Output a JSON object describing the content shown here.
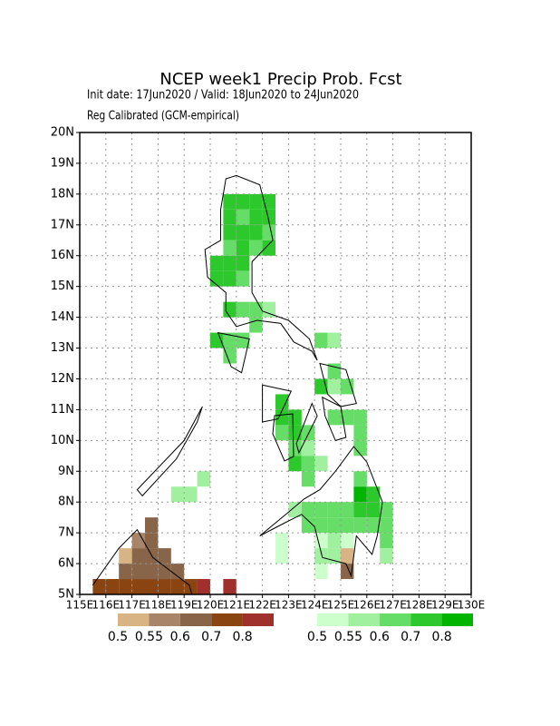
{
  "header": {
    "title": "NCEP week1 Precip Prob. Fcst",
    "line1": "Init date: 17Jun2020 / Valid: 18Jun2020 to 24Jun2020",
    "line2": "Reg Calibrated (GCM-empirical)"
  },
  "map": {
    "xlim": [
      115,
      130
    ],
    "ylim": [
      5,
      20
    ],
    "xticks": [
      {
        "value": 115,
        "label": "115E"
      },
      {
        "value": 116,
        "label": "116E"
      },
      {
        "value": 117,
        "label": "117E"
      },
      {
        "value": 118,
        "label": "118E"
      },
      {
        "value": 119,
        "label": "119E"
      },
      {
        "value": 120,
        "label": "120E"
      },
      {
        "value": 121,
        "label": "121E"
      },
      {
        "value": 122,
        "label": "122E"
      },
      {
        "value": 123,
        "label": "123E"
      },
      {
        "value": 124,
        "label": "124E"
      },
      {
        "value": 125,
        "label": "125E"
      },
      {
        "value": 126,
        "label": "126E"
      },
      {
        "value": 127,
        "label": "127E"
      },
      {
        "value": 128,
        "label": "128E"
      },
      {
        "value": 129,
        "label": "129E"
      },
      {
        "value": 130,
        "label": "130E"
      }
    ],
    "yticks": [
      {
        "value": 5,
        "label": "5N"
      },
      {
        "value": 6,
        "label": "6N"
      },
      {
        "value": 7,
        "label": "7N"
      },
      {
        "value": 8,
        "label": "8N"
      },
      {
        "value": 9,
        "label": "9N"
      },
      {
        "value": 10,
        "label": "10N"
      },
      {
        "value": 11,
        "label": "11N"
      },
      {
        "value": 12,
        "label": "12N"
      },
      {
        "value": 13,
        "label": "13N"
      },
      {
        "value": 14,
        "label": "14N"
      },
      {
        "value": 15,
        "label": "15N"
      },
      {
        "value": 16,
        "label": "16N"
      },
      {
        "value": 17,
        "label": "17N"
      },
      {
        "value": 18,
        "label": "18N"
      },
      {
        "value": 19,
        "label": "19N"
      },
      {
        "value": 20,
        "label": "20N"
      }
    ],
    "grid": true,
    "legend_dry": {
      "colors": [
        "#d8b384",
        "#a88468",
        "#886448",
        "#8a4412",
        "#a0302c"
      ],
      "labels": [
        0.5,
        0.55,
        0.6,
        0.7,
        0.8
      ]
    },
    "legend_wet": {
      "colors": [
        "#ccffcc",
        "#a0f0a0",
        "#66dd66",
        "#2cc82c",
        "#00b400"
      ],
      "labels": [
        0.5,
        0.55,
        0.6,
        0.7,
        0.8
      ]
    },
    "dry_cells": [
      [
        117,
        6.5,
        0.55
      ],
      [
        117.5,
        7,
        0.6
      ],
      [
        117.5,
        6.5,
        0.6
      ],
      [
        117,
        6,
        0.6
      ],
      [
        117.5,
        6,
        0.6
      ],
      [
        118,
        6,
        0.6
      ],
      [
        116.5,
        6,
        0.5
      ],
      [
        116.5,
        5.5,
        0.6
      ],
      [
        117,
        5.5,
        0.6
      ],
      [
        117.5,
        5.5,
        0.6
      ],
      [
        118,
        5.5,
        0.6
      ],
      [
        118.5,
        5.5,
        0.6
      ],
      [
        115.5,
        5,
        0.7
      ],
      [
        116,
        5,
        0.7
      ],
      [
        116.5,
        5,
        0.7
      ],
      [
        117,
        5,
        0.7
      ],
      [
        117.5,
        5,
        0.7
      ],
      [
        118,
        5,
        0.7
      ],
      [
        118.5,
        5,
        0.7
      ],
      [
        119,
        5,
        0.7
      ],
      [
        119.5,
        5,
        0.8
      ],
      [
        120.5,
        5,
        0.8
      ],
      [
        125,
        6,
        0.5
      ],
      [
        125,
        5.5,
        0.6
      ]
    ],
    "wet_cells": [
      [
        120.5,
        17.5,
        0.7
      ],
      [
        121,
        17.5,
        0.7
      ],
      [
        121.5,
        17.5,
        0.7
      ],
      [
        122,
        17.5,
        0.7
      ],
      [
        120.5,
        17,
        0.7
      ],
      [
        121,
        17,
        0.6
      ],
      [
        121.5,
        17,
        0.7
      ],
      [
        122,
        17,
        0.7
      ],
      [
        120.5,
        16.5,
        0.7
      ],
      [
        121,
        16.5,
        0.7
      ],
      [
        121.5,
        16.5,
        0.7
      ],
      [
        122,
        16.5,
        0.6
      ],
      [
        120.5,
        16,
        0.6
      ],
      [
        121,
        16,
        0.7
      ],
      [
        121.5,
        16,
        0.6
      ],
      [
        122,
        16,
        0.7
      ],
      [
        120,
        15.5,
        0.7
      ],
      [
        120.5,
        15.5,
        0.7
      ],
      [
        121,
        15.5,
        0.7
      ],
      [
        120,
        15,
        0.7
      ],
      [
        120.5,
        15,
        0.7
      ],
      [
        121,
        15,
        0.6
      ],
      [
        120.5,
        14,
        0.7
      ],
      [
        121,
        14,
        0.6
      ],
      [
        121.5,
        14,
        0.6
      ],
      [
        122,
        14,
        0.55
      ],
      [
        121.5,
        13.5,
        0.6
      ],
      [
        120,
        13,
        0.7
      ],
      [
        120.5,
        13,
        0.6
      ],
      [
        121,
        13,
        0.6
      ],
      [
        120.5,
        12.5,
        0.6
      ],
      [
        124,
        13,
        0.6
      ],
      [
        124.5,
        13,
        0.55
      ],
      [
        124.5,
        12,
        0.6
      ],
      [
        124,
        11.5,
        0.7
      ],
      [
        124.5,
        11.5,
        0.55
      ],
      [
        125,
        11.5,
        0.6
      ],
      [
        122.5,
        11,
        0.7
      ],
      [
        122.5,
        10.5,
        0.7
      ],
      [
        123,
        10.5,
        0.7
      ],
      [
        124.5,
        10.5,
        0.6
      ],
      [
        125,
        10.5,
        0.6
      ],
      [
        125.5,
        10.5,
        0.6
      ],
      [
        122.5,
        10,
        0.6
      ],
      [
        123,
        10,
        0.7
      ],
      [
        123.5,
        10,
        0.6
      ],
      [
        125.5,
        10,
        0.6
      ],
      [
        123,
        9.5,
        0.6
      ],
      [
        123.5,
        9.5,
        0.55
      ],
      [
        125.5,
        9.5,
        0.6
      ],
      [
        123,
        9,
        0.7
      ],
      [
        123.5,
        9,
        0.6
      ],
      [
        124,
        9,
        0.55
      ],
      [
        123.5,
        8.5,
        0.6
      ],
      [
        119.5,
        8.5,
        0.55
      ],
      [
        118.5,
        8,
        0.55
      ],
      [
        119,
        8,
        0.55
      ],
      [
        125.5,
        8.5,
        0.6
      ],
      [
        125.5,
        8,
        0.8
      ],
      [
        126,
        8,
        0.7
      ],
      [
        123,
        7.5,
        0.55
      ],
      [
        123.5,
        7.5,
        0.6
      ],
      [
        124,
        7.5,
        0.6
      ],
      [
        124.5,
        7.5,
        0.6
      ],
      [
        125,
        7.5,
        0.6
      ],
      [
        125.5,
        7.5,
        0.7
      ],
      [
        126,
        7.5,
        0.7
      ],
      [
        126.5,
        7.5,
        0.6
      ],
      [
        123.5,
        7,
        0.6
      ],
      [
        124,
        7,
        0.6
      ],
      [
        124.5,
        7,
        0.6
      ],
      [
        125,
        7,
        0.6
      ],
      [
        125.5,
        7,
        0.6
      ],
      [
        126,
        7,
        0.6
      ],
      [
        126.5,
        7,
        0.6
      ],
      [
        122.5,
        6.5,
        0.5
      ],
      [
        122.5,
        6,
        0.5
      ],
      [
        124,
        6.5,
        0.5
      ],
      [
        124.5,
        6.5,
        0.55
      ],
      [
        125,
        6.5,
        0.5
      ],
      [
        124,
        6,
        0.55
      ],
      [
        124.5,
        6,
        0.55
      ],
      [
        126.5,
        6.5,
        0.6
      ],
      [
        126.5,
        6,
        0.55
      ],
      [
        124,
        5.5,
        0.5
      ]
    ]
  }
}
